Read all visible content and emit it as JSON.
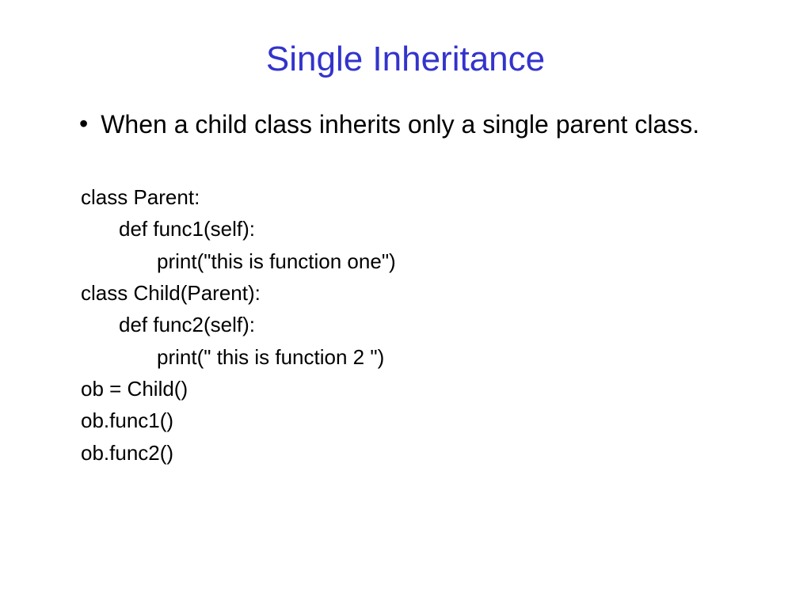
{
  "slide": {
    "title": "Single Inheritance",
    "title_color": "#3333cc",
    "body_color": "#000000",
    "background_color": "#ffffff",
    "title_fontsize": 44,
    "body_fontsize": 32,
    "code_fontsize": 26,
    "bullet": {
      "marker": "•",
      "text": "When a child class inherits only a single parent class."
    },
    "code_lines": [
      {
        "indent": 0,
        "text": "class Parent:"
      },
      {
        "indent": 1,
        "text": "def func1(self):"
      },
      {
        "indent": 2,
        "text": "print(\"this is function one\")"
      },
      {
        "indent": 0,
        "text": "class Child(Parent):"
      },
      {
        "indent": 1,
        "text": "def func2(self):"
      },
      {
        "indent": 2,
        "text": "print(\" this is function 2 \")"
      },
      {
        "indent": 0,
        "text": "ob = Child()"
      },
      {
        "indent": 0,
        "text": "ob.func1()"
      },
      {
        "indent": 0,
        "text": "ob.func2()"
      }
    ]
  }
}
